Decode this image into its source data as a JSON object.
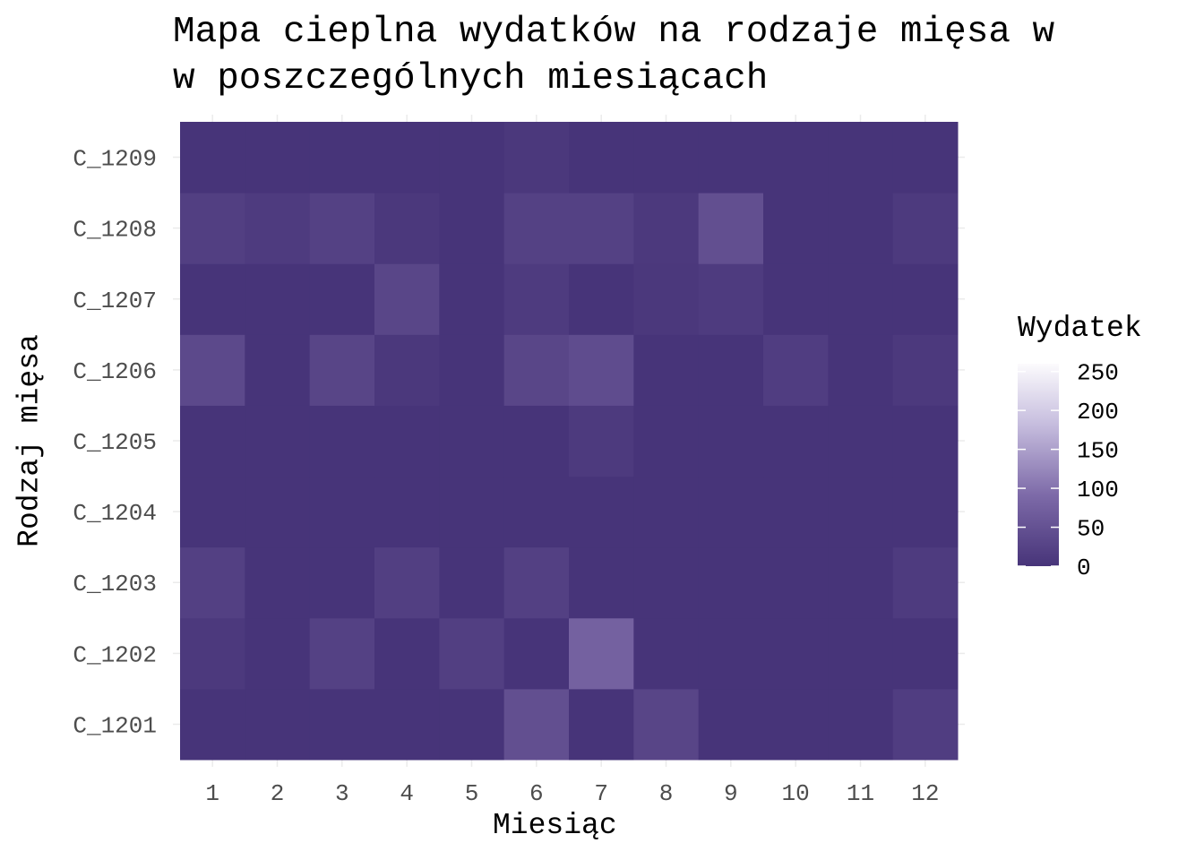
{
  "chart_data": {
    "type": "heatmap",
    "title_lines": [
      "Mapa cieplna wydatków na rodzaje mięsa w",
      "w poszczególnych miesiącach"
    ],
    "xlabel": "Miesiąc",
    "ylabel": "Rodzaj mięsa",
    "x_categories": [
      "1",
      "2",
      "3",
      "4",
      "5",
      "6",
      "7",
      "8",
      "9",
      "10",
      "11",
      "12"
    ],
    "y_categories": [
      "C_1201",
      "C_1202",
      "C_1203",
      "C_1204",
      "C_1205",
      "C_1206",
      "C_1207",
      "C_1208",
      "C_1209"
    ],
    "values": [
      [
        0,
        0,
        0,
        0,
        0,
        45,
        0,
        28,
        0,
        0,
        0,
        15
      ],
      [
        8,
        0,
        22,
        0,
        18,
        0,
        75,
        0,
        0,
        0,
        0,
        0
      ],
      [
        20,
        0,
        0,
        18,
        0,
        20,
        0,
        0,
        0,
        0,
        0,
        12
      ],
      [
        0,
        0,
        0,
        0,
        0,
        0,
        0,
        0,
        0,
        0,
        0,
        0
      ],
      [
        0,
        0,
        0,
        0,
        0,
        0,
        10,
        0,
        0,
        0,
        0,
        0
      ],
      [
        35,
        0,
        28,
        6,
        0,
        30,
        40,
        0,
        0,
        15,
        0,
        8
      ],
      [
        0,
        0,
        0,
        30,
        0,
        12,
        0,
        6,
        12,
        0,
        0,
        0
      ],
      [
        18,
        12,
        22,
        6,
        0,
        22,
        22,
        8,
        45,
        0,
        0,
        10
      ],
      [
        0,
        0,
        0,
        0,
        0,
        6,
        0,
        0,
        0,
        0,
        0,
        0
      ]
    ],
    "legend": {
      "title": "Wydatek",
      "ticks": [
        0,
        50,
        100,
        150,
        200,
        250
      ],
      "range": [
        0,
        260
      ],
      "color_low": "#473479",
      "color_high": "#fcfbfd"
    }
  }
}
